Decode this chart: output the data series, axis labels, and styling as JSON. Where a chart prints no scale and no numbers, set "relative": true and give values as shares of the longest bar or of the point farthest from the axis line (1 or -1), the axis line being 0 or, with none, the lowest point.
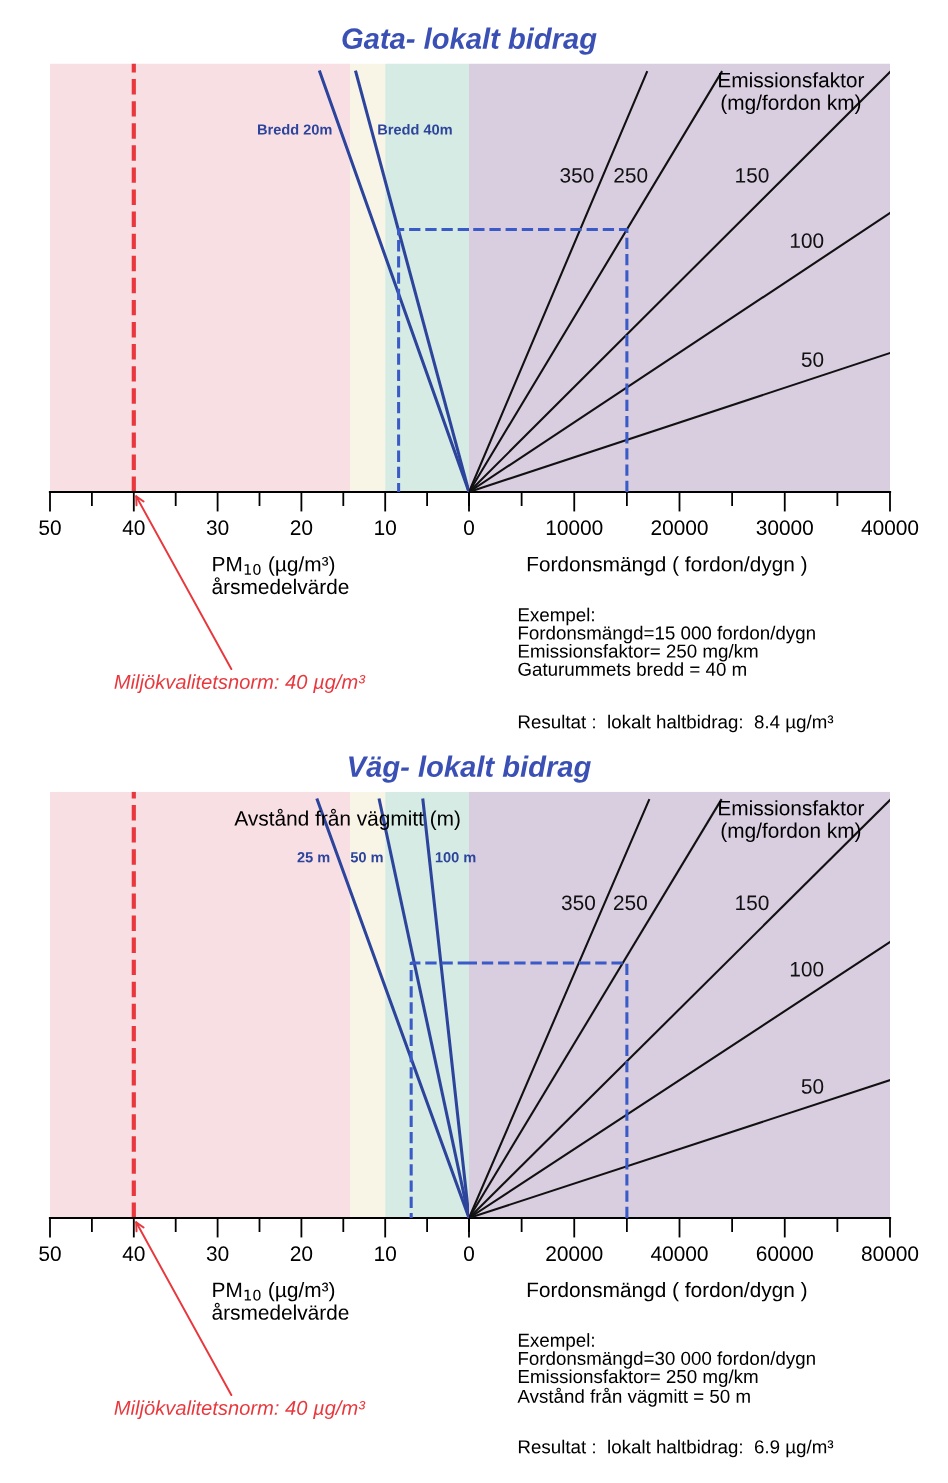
{
  "chart_data": [
    {
      "type": "line",
      "title": "Gata- lokalt bidrag",
      "xlabel": "PM$_{10}$ (µg/m³)\nårsmedelvärde",
      "relative": true,
      "xlim": [
        50,
        0
      ],
      "xticks": [
        50,
        {
          "value": 45,
          "label": null
        },
        40,
        {
          "value": 35,
          "label": null
        },
        30,
        {
          "value": 25,
          "label": null
        },
        20,
        {
          "value": 15,
          "label": null
        },
        10,
        {
          "value": 5,
          "label": null
        },
        0
      ],
      "bands": [
        {
          "axis": "x",
          "from": 50,
          "to": 14.2,
          "color": "#f8dfe4"
        },
        {
          "axis": "x",
          "from": 14.2,
          "to": 10,
          "color": "#f8f5e6"
        },
        {
          "axis": "x",
          "from": 10,
          "to": 0,
          "color": "#d5ebe3"
        }
      ],
      "ref_lines": [
        {
          "axis": "x",
          "value": 40,
          "color": "#e8383d",
          "line_style": "dashed"
        }
      ],
      "series": [
        {
          "name": "Bredd 20m",
          "color": "#2d449c",
          "x": [
            0,
            17.8
          ],
          "values": [
            0,
            1
          ]
        },
        {
          "name": "Bredd 40m",
          "color": "#2d449c",
          "x": [
            0,
            13.5
          ],
          "values": [
            0,
            1
          ]
        },
        {
          "color": "#3a5bc7",
          "line_style": "dashed",
          "x": [
            0,
            8.4,
            8.4
          ],
          "values": [
            0.625,
            0.625,
            0
          ]
        }
      ],
      "annotations": [
        {
          "text": "Miljökvalitetsnorm: 40 µg/m³",
          "x": 40,
          "y": 0
        }
      ]
    },
    {
      "type": "line",
      "xlabel": "Fordonsmängd ( fordon/dygn )",
      "relative": true,
      "legend_title": "Emissionsfaktor\n(mg/fordon km)",
      "xlim": [
        0,
        40000
      ],
      "xticks": [
        {
          "value": 0,
          "label": null
        },
        {
          "value": 5000,
          "label": null
        },
        10000,
        {
          "value": 15000,
          "label": null
        },
        20000,
        {
          "value": 25000,
          "label": null
        },
        30000,
        {
          "value": 35000,
          "label": null
        },
        40000
      ],
      "bands": [
        {
          "axis": "x",
          "from": 0,
          "to": 40000,
          "color": "#d9cde0"
        }
      ],
      "series": [
        {
          "name": "350",
          "color": "#111111",
          "x": [
            0,
            16900
          ],
          "values": [
            0,
            1
          ]
        },
        {
          "name": "250",
          "color": "#111111",
          "x": [
            0,
            24000
          ],
          "values": [
            0,
            1
          ]
        },
        {
          "name": "150",
          "color": "#111111",
          "x": [
            0,
            40000
          ],
          "values": [
            0,
            1
          ]
        },
        {
          "name": "100",
          "color": "#111111",
          "x": [
            0,
            40000
          ],
          "values": [
            0,
            0.664
          ]
        },
        {
          "name": "50",
          "color": "#111111",
          "x": [
            0,
            40000
          ],
          "values": [
            0,
            0.331
          ]
        },
        {
          "color": "#3a5bc7",
          "line_style": "dashed",
          "x": [
            15000,
            15000,
            0
          ],
          "values": [
            0,
            0.625,
            0.625
          ]
        }
      ],
      "annotations": [
        "Exempel:\nFordonsmängd=15 000 fordon/dygn\nEmissionsfaktor= 250 mg/km\nGaturummets bredd = 40 m",
        "Resultat :  lokalt haltbidrag:  8.4 µg/m³"
      ]
    },
    {
      "type": "line",
      "title": "Väg- lokalt bidrag",
      "xlabel": "PM$_{10}$ (µg/m³)\nårsmedelvärde",
      "relative": true,
      "legend_title": "Avstånd från vägmitt (m)",
      "xlim": [
        50,
        0
      ],
      "xticks": [
        50,
        {
          "value": 45,
          "label": null
        },
        40,
        {
          "value": 35,
          "label": null
        },
        30,
        {
          "value": 25,
          "label": null
        },
        20,
        {
          "value": 15,
          "label": null
        },
        10,
        {
          "value": 5,
          "label": null
        },
        0
      ],
      "bands": [
        {
          "axis": "x",
          "from": 50,
          "to": 14.2,
          "color": "#f8dfe4"
        },
        {
          "axis": "x",
          "from": 14.2,
          "to": 10,
          "color": "#f8f5e6"
        },
        {
          "axis": "x",
          "from": 10,
          "to": 0,
          "color": "#d5ebe3"
        }
      ],
      "ref_lines": [
        {
          "axis": "x",
          "value": 40,
          "color": "#e8383d",
          "line_style": "dashed"
        }
      ],
      "series": [
        {
          "name": "25 m",
          "color": "#2d449c",
          "x": [
            0,
            18.1
          ],
          "values": [
            0,
            1
          ]
        },
        {
          "name": "50 m",
          "color": "#2d449c",
          "x": [
            0,
            10.7
          ],
          "values": [
            0,
            1
          ]
        },
        {
          "name": "100 m",
          "color": "#2d449c",
          "x": [
            0,
            5.5
          ],
          "values": [
            0,
            1
          ]
        },
        {
          "color": "#3a5bc7",
          "line_style": "dashed",
          "x": [
            0,
            6.9,
            6.9
          ],
          "values": [
            0.61,
            0.61,
            0
          ]
        }
      ],
      "annotations": [
        {
          "text": "Miljökvalitetsnorm: 40 µg/m³",
          "x": 40,
          "y": 0
        }
      ]
    },
    {
      "type": "line",
      "xlabel": "Fordonsmängd ( fordon/dygn )",
      "relative": true,
      "legend_title": "Emissionsfaktor\n(mg/fordon km)",
      "xlim": [
        0,
        80000
      ],
      "xticks": [
        {
          "value": 0,
          "label": null
        },
        {
          "value": 10000,
          "label": null
        },
        20000,
        {
          "value": 30000,
          "label": null
        },
        40000,
        {
          "value": 50000,
          "label": null
        },
        60000,
        {
          "value": 70000,
          "label": null
        },
        80000
      ],
      "bands": [
        {
          "axis": "x",
          "from": 0,
          "to": 80000,
          "color": "#d9cde0"
        }
      ],
      "series": [
        {
          "name": "350",
          "color": "#111111",
          "x": [
            0,
            34200
          ],
          "values": [
            0,
            1
          ]
        },
        {
          "name": "250",
          "color": "#111111",
          "x": [
            0,
            47900
          ],
          "values": [
            0,
            1
          ]
        },
        {
          "name": "150",
          "color": "#111111",
          "x": [
            0,
            80000
          ],
          "values": [
            0,
            1
          ]
        },
        {
          "name": "100",
          "color": "#111111",
          "x": [
            0,
            80000
          ],
          "values": [
            0,
            0.66
          ]
        },
        {
          "name": "50",
          "color": "#111111",
          "x": [
            0,
            80000
          ],
          "values": [
            0,
            0.33
          ]
        },
        {
          "color": "#3a5bc7",
          "line_style": "dashed",
          "x": [
            30000,
            30000,
            0
          ],
          "values": [
            0,
            0.61,
            0.61
          ]
        }
      ],
      "annotations": [
        "Exempel:\nFordonsmängd=30 000 fordon/dygn\nEmissionsfaktor= 250 mg/km\nAvstånd från vägmitt = 50 m",
        "Resultat :  lokalt haltbidrag:  6.9 µg/m³"
      ]
    }
  ]
}
